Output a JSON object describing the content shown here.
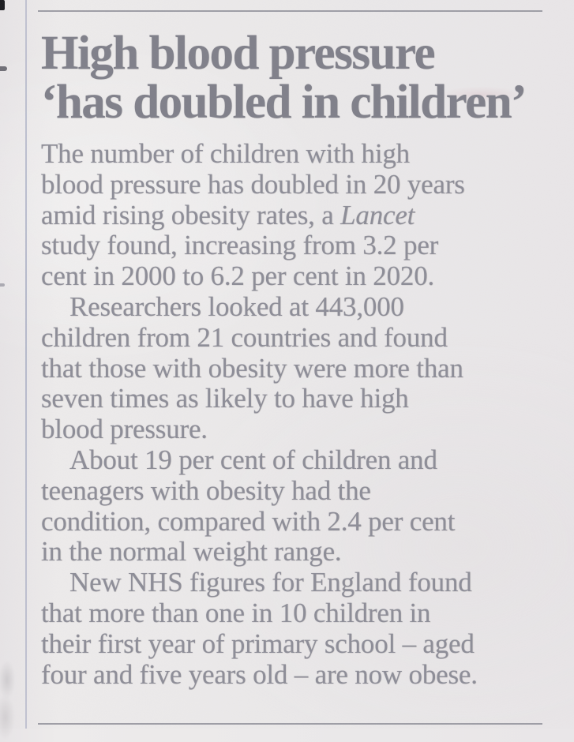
{
  "colors": {
    "paper": "#ebe9e9",
    "headline": "#80808a",
    "body_text": "#8d8d97",
    "rule": "#90909a",
    "column_rule": "#a9aec4"
  },
  "article": {
    "headline_lines": [
      "High blood pressure",
      "‘has doubled in children’"
    ],
    "paragraphs": [
      {
        "indent": false,
        "lines": [
          "The number of children with high",
          "blood pressure has doubled in 20 years",
          "amid rising obesity rates, a *Lancet*",
          "study found, increasing from 3.2 per",
          "cent in 2000 to 6.2 per cent in 2020."
        ]
      },
      {
        "indent": true,
        "lines": [
          "Researchers looked at 443,000",
          "children from 21 countries and found",
          "that those with obesity were more than",
          "seven times as likely to have high",
          "blood pressure."
        ]
      },
      {
        "indent": true,
        "lines": [
          "About 19 per cent of children and",
          "teenagers with obesity had the",
          "condition, compared with 2.4 per cent",
          "in the normal weight range."
        ]
      },
      {
        "indent": true,
        "lines": [
          "New NHS figures for England found",
          "that more than one in 10 children in",
          "their first year of primary school – aged",
          "four and five years old – are now obese."
        ]
      }
    ]
  }
}
